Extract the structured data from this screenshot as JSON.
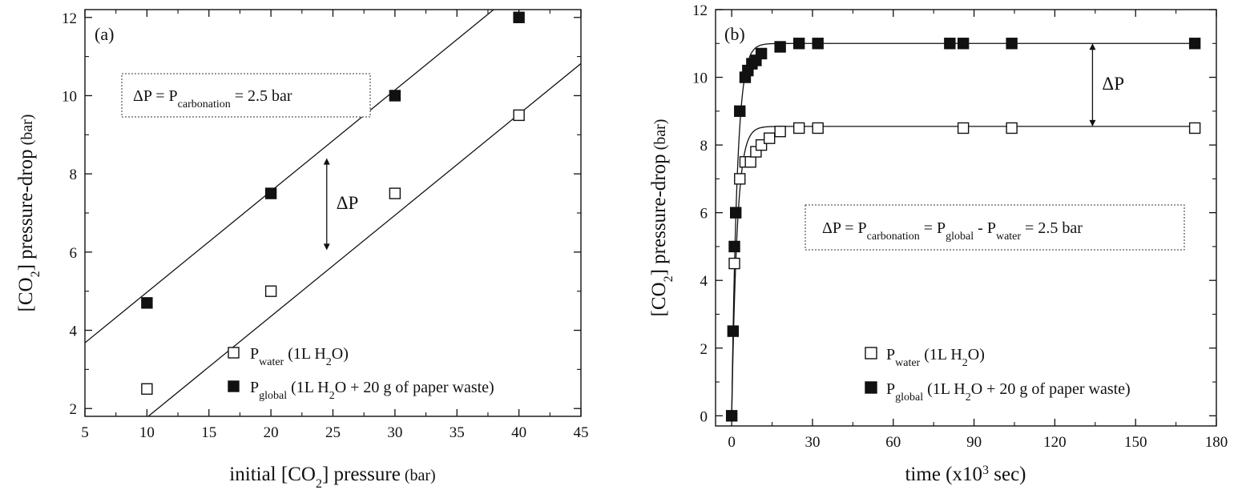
{
  "chart_data": [
    {
      "type": "scatter",
      "panel_label": "(a)",
      "xlabel": "initial [CO",
      "xlabel_sub": "2",
      "xlabel_tail": "] pressure",
      "xlabel_unit": "(bar)",
      "ylabel": "[CO",
      "ylabel_sub": "2",
      "ylabel_tail": "] pressure-drop",
      "ylabel_unit": "(bar)",
      "xlim": [
        5,
        45
      ],
      "ylim": [
        1.8,
        12.2
      ],
      "xticks": [
        5,
        10,
        15,
        20,
        25,
        30,
        35,
        40,
        45
      ],
      "yticks": [
        2,
        4,
        6,
        8,
        10,
        12
      ],
      "series": [
        {
          "name": "P",
          "name_sub": "water",
          "name_tail": " (1L H",
          "name_sub2": "2",
          "name_tail2": "O)",
          "marker": "open-square",
          "x": [
            10,
            20,
            30,
            40
          ],
          "y": [
            2.5,
            5.0,
            7.5,
            9.5
          ],
          "fit": {
            "type": "linear",
            "x": [
              5,
              45
            ],
            "y": [
              0.48,
              10.82
            ]
          }
        },
        {
          "name": "P",
          "name_sub": "global",
          "name_tail": " (1L H",
          "name_sub2": "2",
          "name_tail2": "O + 20 g of paper waste)",
          "marker": "filled-square",
          "x": [
            10,
            20,
            30,
            40
          ],
          "y": [
            4.7,
            7.5,
            10.0,
            12.0
          ],
          "fit": {
            "type": "linear",
            "x": [
              5,
              45
            ],
            "y": [
              3.68,
              14.02
            ]
          }
        }
      ],
      "annotation_box": {
        "lead": "ΔP = P",
        "sub": "carbonation",
        "tail": " = 2.5 bar"
      },
      "arrow_annotation": {
        "text": "ΔP",
        "x": 24.5,
        "y_from": 6.05,
        "y_to": 8.4
      },
      "legend_placement": "bottom-right"
    },
    {
      "type": "scatter",
      "panel_label": "(b)",
      "xlabel": "time (x10",
      "xlabel_sup": "3",
      "xlabel_tail": " sec)",
      "ylabel": "[CO",
      "ylabel_sub": "2",
      "ylabel_tail": "] pressure-drop",
      "ylabel_unit": "(bar)",
      "xlim": [
        -6,
        180
      ],
      "ylim": [
        -0.3,
        12
      ],
      "xticks": [
        0,
        30,
        60,
        90,
        120,
        150,
        180
      ],
      "yticks": [
        0,
        2,
        4,
        6,
        8,
        10,
        12
      ],
      "series": [
        {
          "name": "P",
          "name_sub": "water",
          "name_tail": " (1L H",
          "name_sub2": "2",
          "name_tail2": "O)",
          "marker": "open-square",
          "x": [
            1,
            3,
            5,
            7,
            9,
            11,
            14,
            18,
            25,
            32,
            86,
            104,
            172
          ],
          "y": [
            4.5,
            7.0,
            7.5,
            7.5,
            7.8,
            8.0,
            8.2,
            8.4,
            8.5,
            8.5,
            8.5,
            8.5,
            8.5
          ],
          "fit": {
            "type": "exp-saturation",
            "plateau": 8.55,
            "tau": 2.0
          }
        },
        {
          "name": "P",
          "name_sub": "global",
          "name_tail": " (1L H",
          "name_sub2": "2",
          "name_tail2": "O + 20 g of paper waste)",
          "marker": "filled-square",
          "x": [
            0,
            0.5,
            1,
            1.5,
            3,
            5,
            6,
            7.5,
            9,
            11,
            18,
            25,
            32,
            81,
            86,
            104,
            172
          ],
          "y": [
            0,
            2.5,
            5.0,
            6.0,
            9.0,
            10.0,
            10.2,
            10.4,
            10.5,
            10.7,
            10.9,
            11.0,
            11.0,
            11.0,
            11.0,
            11.0,
            11.0
          ],
          "fit": {
            "type": "exp-saturation",
            "plateau": 11.0,
            "tau": 2.0
          }
        }
      ],
      "annotation_box": {
        "lead": "ΔP = P",
        "sub": "carbonation",
        "mid": " = P",
        "sub2": "global",
        "mid2": " - P",
        "sub3": "water",
        "tail": " = 2.5 bar"
      },
      "arrow_annotation": {
        "text": "ΔP",
        "x": 134,
        "y_from": 8.55,
        "y_to": 11.0
      },
      "legend_placement": "bottom-right"
    }
  ]
}
